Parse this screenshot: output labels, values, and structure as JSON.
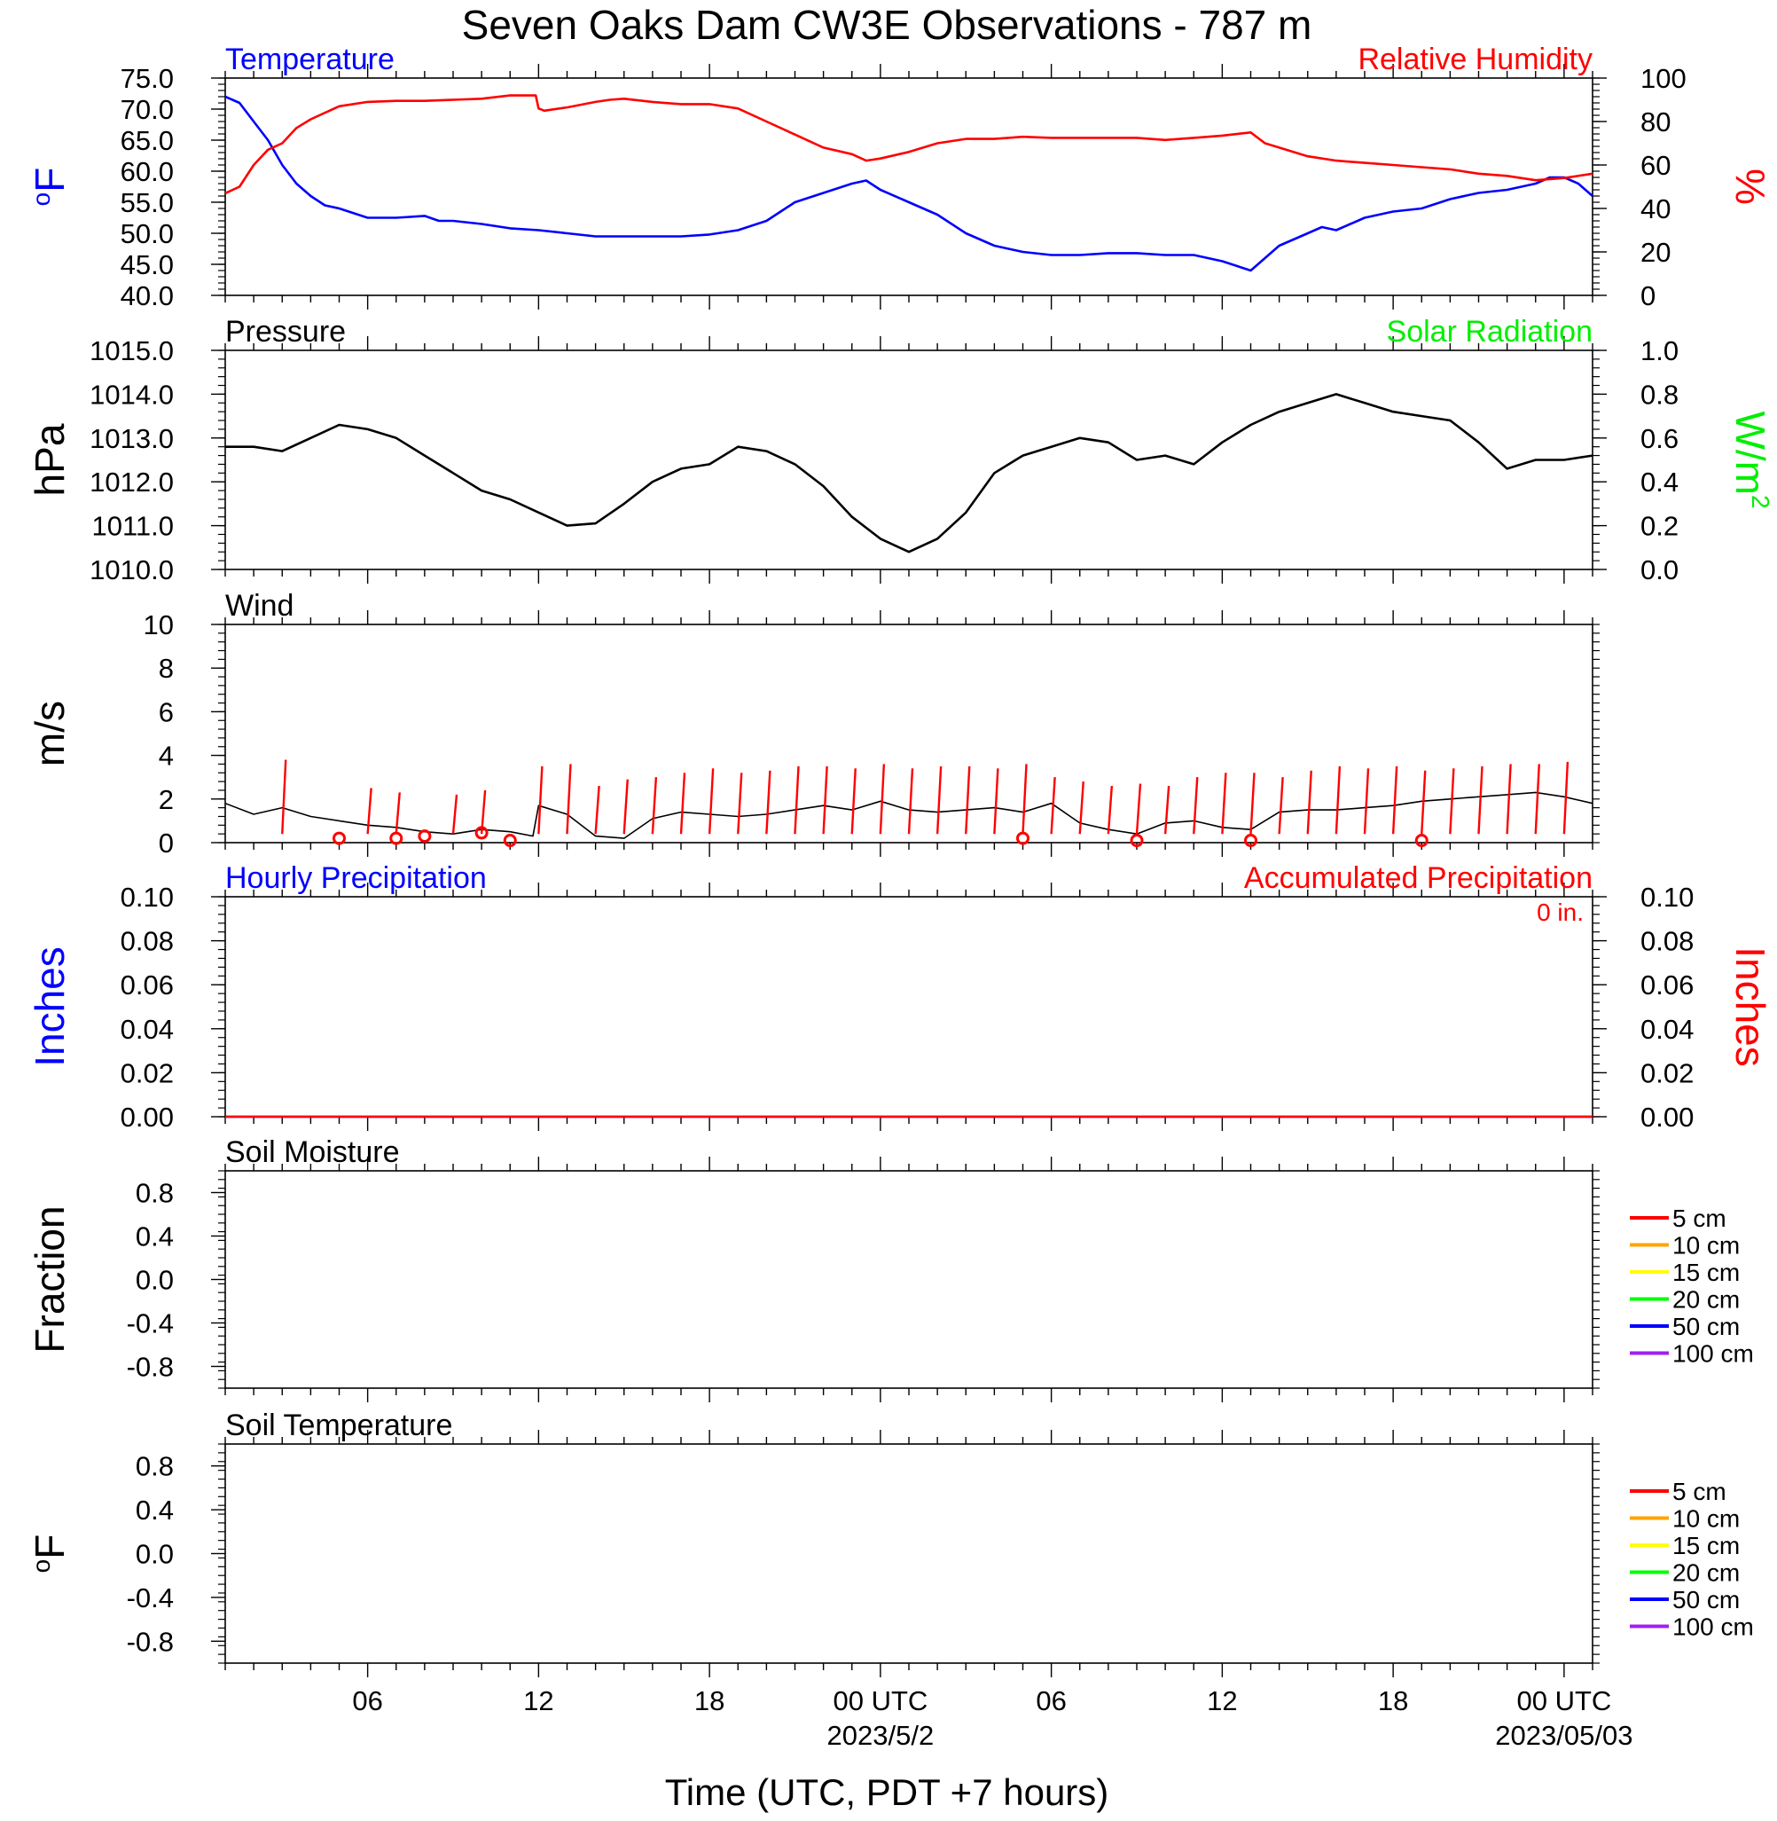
{
  "title": "Seven Oaks Dam CW3E Observations - 787 m",
  "x_axis": {
    "label": "Time (UTC, PDT +7 hours)",
    "range_hours": [
      0,
      48
    ],
    "tick_hours": [
      5,
      11,
      17,
      23,
      29,
      35,
      41,
      47
    ],
    "tick_labels": [
      "06",
      "12",
      "18",
      "00 UTC",
      "06",
      "12",
      "18",
      "00 UTC"
    ],
    "date_labels": [
      {
        "hour": 23,
        "text": "2023/5/2"
      },
      {
        "hour": 47,
        "text": "2023/05/03"
      }
    ]
  },
  "colors": {
    "temperature": "#0000ff",
    "humidity": "#ff0000",
    "pressure": "#000000",
    "solar": "#00ee00",
    "wind": "#000000",
    "gust": "#ff0000",
    "hourly_precip": "#0000ff",
    "accum_precip": "#ff0000"
  },
  "chart_data": [
    {
      "type": "line",
      "panel": "temperature-humidity",
      "left_label": "Temperature",
      "right_label": "Relative Humidity",
      "left_unit": "oF",
      "right_unit": "%",
      "left_ylim": [
        40,
        75
      ],
      "left_ticks": [
        "75.0",
        "70.0",
        "65.0",
        "60.0",
        "55.0",
        "50.0",
        "45.0",
        "40.0"
      ],
      "right_ylim": [
        0,
        100
      ],
      "right_ticks": [
        "100",
        "80",
        "60",
        "40",
        "20",
        "0"
      ],
      "series": [
        {
          "name": "Temperature",
          "x": [
            0,
            0.5,
            1,
            1.5,
            2,
            2.5,
            3,
            3.5,
            4,
            5,
            6,
            7,
            7.5,
            8,
            9,
            10,
            11,
            12,
            13,
            14,
            15,
            16,
            17,
            18,
            19,
            19.5,
            20,
            21,
            22,
            22.5,
            23,
            24,
            25,
            26,
            27,
            28,
            29,
            30,
            31,
            32,
            33,
            34,
            35,
            36,
            37,
            37.5,
            38,
            38.5,
            39,
            39.5,
            40,
            41,
            42,
            43,
            44,
            45,
            46,
            46.5,
            47,
            47.5,
            48
          ],
          "values": [
            72,
            71,
            68,
            65,
            61,
            58,
            56,
            54.5,
            54,
            52.5,
            52.5,
            52.8,
            52,
            52,
            51.5,
            50.8,
            50.5,
            50,
            49.5,
            49.5,
            49.5,
            49.5,
            49.8,
            50.5,
            52,
            53.5,
            55,
            56.5,
            58,
            58.5,
            57,
            55,
            53,
            50,
            48,
            47,
            46.5,
            46.5,
            46.8,
            46.8,
            46.5,
            46.5,
            45.5,
            44,
            48,
            49,
            50,
            51,
            50.5,
            51.5,
            52.5,
            53.5,
            54,
            55.5,
            56.5,
            57,
            58,
            59,
            59,
            58,
            56
          ]
        },
        {
          "name": "Relative Humidity",
          "x": [
            0,
            0.5,
            1,
            1.5,
            2,
            2.5,
            3,
            4,
            5,
            6,
            7,
            8,
            9,
            10,
            10.9,
            11,
            11.2,
            12,
            13,
            13.5,
            14,
            15,
            16,
            17,
            18,
            19,
            20,
            21,
            22,
            22.5,
            23,
            24,
            25,
            26,
            27,
            28,
            29,
            30,
            31,
            32,
            33,
            34,
            35,
            36,
            36.5,
            37,
            38,
            39,
            40,
            41,
            42,
            43,
            44,
            45,
            46,
            47,
            48
          ],
          "values": [
            47,
            50,
            60,
            67,
            70,
            77,
            81,
            87,
            89,
            89.5,
            89.5,
            90,
            90.5,
            92,
            92,
            86,
            85,
            86.5,
            89,
            90,
            90.5,
            89,
            88,
            88,
            86,
            80,
            74,
            68,
            65,
            62,
            63,
            66,
            70,
            72,
            72,
            73,
            72.5,
            72.5,
            72.5,
            72.5,
            71.5,
            72.5,
            73.5,
            75,
            70,
            68,
            64,
            62,
            61,
            60,
            59,
            58,
            56,
            55,
            53,
            54,
            56
          ]
        }
      ]
    },
    {
      "type": "line",
      "panel": "pressure-solar",
      "left_label": "Pressure",
      "right_label": "Solar Radiation",
      "left_unit": "hPa",
      "right_unit": "W/m2",
      "left_ylim": [
        1010,
        1015
      ],
      "left_ticks": [
        "1015.0",
        "1014.0",
        "1013.0",
        "1012.0",
        "1011.0",
        "1010.0"
      ],
      "right_ylim": [
        0,
        1
      ],
      "right_ticks": [
        "1.0",
        "0.8",
        "0.6",
        "0.4",
        "0.2",
        "0.0"
      ],
      "series": [
        {
          "name": "Pressure",
          "x": [
            0,
            1,
            2,
            3,
            4,
            5,
            6,
            7,
            8,
            9,
            10,
            11,
            12,
            13,
            14,
            15,
            16,
            17,
            18,
            19,
            20,
            21,
            22,
            23,
            24,
            25,
            26,
            27,
            28,
            29,
            30,
            31,
            32,
            33,
            34,
            35,
            36,
            37,
            37.5,
            38,
            39,
            40,
            41,
            42,
            43,
            44,
            45,
            46,
            47,
            48
          ],
          "values": [
            1012.8,
            1012.8,
            1012.7,
            1013.0,
            1013.3,
            1013.2,
            1013.0,
            1012.6,
            1012.2,
            1011.8,
            1011.6,
            1011.3,
            1011.0,
            1011.05,
            1011.5,
            1012.0,
            1012.3,
            1012.4,
            1012.8,
            1012.7,
            1012.4,
            1011.9,
            1011.2,
            1010.7,
            1010.4,
            1010.7,
            1011.3,
            1012.2,
            1012.6,
            1012.8,
            1013.0,
            1012.9,
            1012.5,
            1012.6,
            1012.4,
            1012.9,
            1013.3,
            1013.6,
            1013.7,
            1013.8,
            1014.0,
            1013.8,
            1013.6,
            1013.5,
            1013.4,
            1012.9,
            1012.3,
            1012.5,
            1012.5,
            1012.6
          ]
        }
      ]
    },
    {
      "type": "line",
      "panel": "wind",
      "left_label": "Wind",
      "left_unit": "m/s",
      "left_ylim": [
        0,
        10
      ],
      "left_ticks": [
        "10",
        "8",
        "6",
        "4",
        "2",
        "0"
      ],
      "series": [
        {
          "name": "Wind speed",
          "x": [
            0,
            1,
            2,
            3,
            4,
            5,
            6,
            7,
            8,
            9,
            10,
            10.8,
            11,
            12,
            13,
            14,
            15,
            16,
            17,
            18,
            19,
            20,
            21,
            22,
            23,
            24,
            25,
            26,
            27,
            28,
            29,
            30,
            31,
            32,
            33,
            34,
            35,
            36,
            37,
            38,
            39,
            40,
            41,
            42,
            43,
            44,
            45,
            46,
            47,
            48
          ],
          "values": [
            1.8,
            1.3,
            1.6,
            1.2,
            1.0,
            0.8,
            0.7,
            0.5,
            0.4,
            0.6,
            0.5,
            0.3,
            1.7,
            1.3,
            0.3,
            0.2,
            1.1,
            1.4,
            1.3,
            1.2,
            1.3,
            1.5,
            1.7,
            1.5,
            1.9,
            1.5,
            1.4,
            1.5,
            1.6,
            1.4,
            1.8,
            0.9,
            0.6,
            0.4,
            0.9,
            1.0,
            0.7,
            0.6,
            1.4,
            1.5,
            1.5,
            1.6,
            1.7,
            1.9,
            2.0,
            2.1,
            2.2,
            2.3,
            2.1,
            1.8
          ]
        }
      ],
      "gust_hours": [
        2,
        5,
        6,
        8,
        9,
        11,
        12,
        13,
        14,
        15,
        16,
        17,
        18,
        19,
        20,
        21,
        22,
        23,
        24,
        25,
        26,
        27,
        28,
        29,
        30,
        31,
        32,
        33,
        34,
        35,
        36,
        37,
        38,
        39,
        40,
        41,
        42,
        43,
        44,
        45,
        46,
        47
      ],
      "gust_values": [
        3.8,
        2.5,
        2.3,
        2.2,
        2.4,
        3.5,
        3.6,
        2.6,
        2.9,
        3.0,
        3.2,
        3.4,
        3.2,
        3.3,
        3.5,
        3.5,
        3.4,
        3.6,
        3.4,
        3.5,
        3.5,
        3.4,
        3.6,
        3.0,
        2.8,
        2.6,
        2.7,
        2.6,
        3.0,
        3.2,
        3.2,
        3.0,
        3.3,
        3.5,
        3.4,
        3.5,
        3.3,
        3.4,
        3.5,
        3.6,
        3.6,
        3.7
      ],
      "calm_markers": {
        "hours": [
          4,
          6,
          7,
          9,
          10,
          28,
          32,
          36,
          42
        ],
        "values": [
          0.2,
          0.2,
          0.3,
          0.45,
          0.1,
          0.2,
          0.1,
          0.1,
          0.1
        ]
      }
    },
    {
      "type": "line",
      "panel": "precipitation",
      "left_label": "Hourly Precipitation",
      "right_label": "Accumulated Precipitation",
      "accum_total_label": "0 in.",
      "left_unit": "Inches",
      "right_unit": "Inches",
      "left_ylim": [
        0,
        0.1
      ],
      "left_ticks": [
        "0.10",
        "0.08",
        "0.06",
        "0.04",
        "0.02",
        "0.00"
      ],
      "right_ylim": [
        0,
        0.1
      ],
      "right_ticks": [
        "0.10",
        "0.08",
        "0.06",
        "0.04",
        "0.02",
        "0.00"
      ],
      "series": [
        {
          "name": "Hourly Precipitation",
          "x": [
            0,
            48
          ],
          "values": [
            0,
            0
          ]
        },
        {
          "name": "Accumulated Precipitation",
          "x": [
            0,
            48
          ],
          "values": [
            0,
            0
          ]
        }
      ]
    },
    {
      "type": "line",
      "panel": "soil-moisture",
      "left_label": "Soil Moisture",
      "left_unit": "Fraction",
      "left_ylim": [
        -1,
        1
      ],
      "left_ticks": [
        "0.8",
        "0.4",
        "0.0",
        "-0.4",
        "-0.8"
      ],
      "legend": [
        {
          "label": "5 cm",
          "color": "#ff0000"
        },
        {
          "label": "10 cm",
          "color": "#ffa500"
        },
        {
          "label": "15 cm",
          "color": "#ffff00"
        },
        {
          "label": "20 cm",
          "color": "#00ff00"
        },
        {
          "label": "50 cm",
          "color": "#0000ff"
        },
        {
          "label": "100 cm",
          "color": "#a020f0"
        }
      ]
    },
    {
      "type": "line",
      "panel": "soil-temperature",
      "left_label": "Soil Temperature",
      "left_unit": "oF",
      "left_ylim": [
        -1,
        1
      ],
      "left_ticks": [
        "0.8",
        "0.4",
        "0.0",
        "-0.4",
        "-0.8"
      ],
      "legend": [
        {
          "label": "5 cm",
          "color": "#ff0000"
        },
        {
          "label": "10 cm",
          "color": "#ffa500"
        },
        {
          "label": "15 cm",
          "color": "#ffff00"
        },
        {
          "label": "20 cm",
          "color": "#00ff00"
        },
        {
          "label": "50 cm",
          "color": "#0000ff"
        },
        {
          "label": "100 cm",
          "color": "#a020f0"
        }
      ]
    }
  ]
}
